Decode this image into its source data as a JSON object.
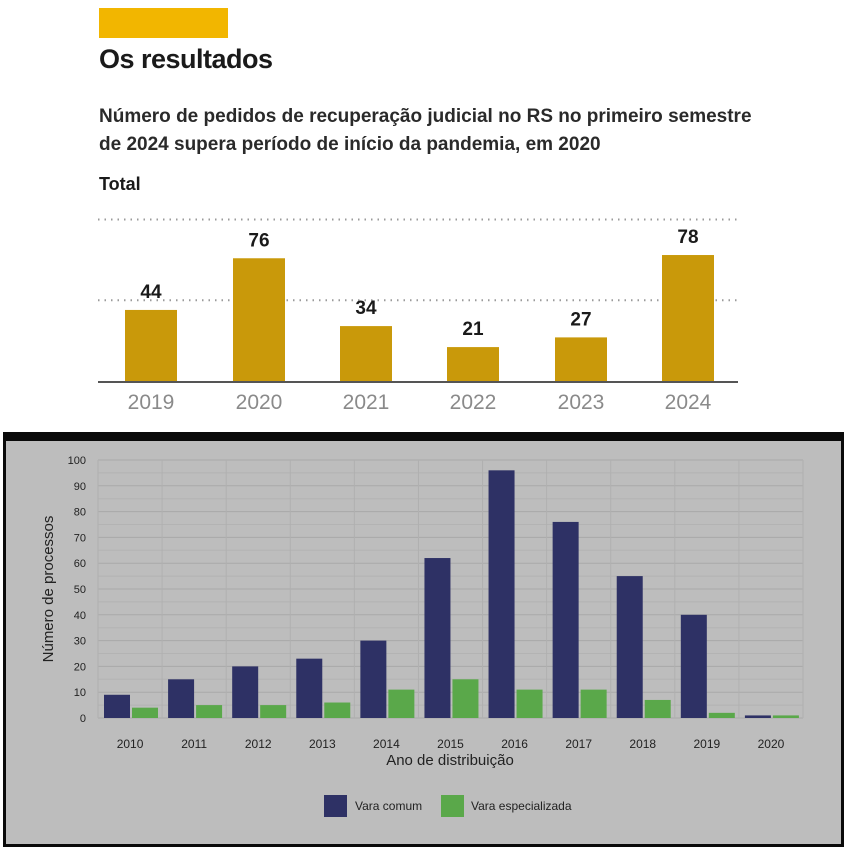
{
  "colors": {
    "accent": "#f2b600",
    "top_bar": "#c9990a",
    "bottom_bg": "#bdbdbd",
    "vara_comum": "#2e3165",
    "vara_especializada": "#5aa84a"
  },
  "top": {
    "heading": "Os resultados",
    "subtitle": "Número de pedidos de recuperação judicial no RS no primeiro semestre de 2024 supera período de início da pandemia, em 2020",
    "series_label": "Total"
  },
  "chart_data": [
    {
      "type": "bar",
      "title": "Os resultados",
      "subtitle": "Número de pedidos de recuperação judicial no RS no primeiro semestre de 2024 supera período de início da pandemia, em 2020",
      "categories": [
        "2019",
        "2020",
        "2021",
        "2022",
        "2023",
        "2024"
      ],
      "series": [
        {
          "name": "Total",
          "values": [
            44,
            76,
            34,
            21,
            27,
            78
          ]
        }
      ],
      "data_labels": [
        "44",
        "76",
        "34",
        "21",
        "27",
        "78"
      ],
      "ylim": [
        0,
        100
      ],
      "grid": "dotted",
      "legend": "none"
    },
    {
      "type": "bar",
      "xlabel": "Ano de distribuição",
      "ylabel": "Número de processos",
      "categories": [
        "2010",
        "2011",
        "2012",
        "2013",
        "2014",
        "2015",
        "2016",
        "2017",
        "2018",
        "2019",
        "2020"
      ],
      "series": [
        {
          "name": "Vara comum",
          "values": [
            9,
            15,
            20,
            23,
            30,
            62,
            96,
            76,
            55,
            40,
            1
          ]
        },
        {
          "name": "Vara especializada",
          "values": [
            4,
            5,
            5,
            6,
            11,
            15,
            11,
            11,
            7,
            2,
            1
          ]
        }
      ],
      "ylim": [
        0,
        100
      ],
      "yticks": [
        "0",
        "10",
        "20",
        "30",
        "40",
        "50",
        "60",
        "70",
        "80",
        "90",
        "100"
      ],
      "grid": true,
      "legend": "bottom"
    }
  ]
}
